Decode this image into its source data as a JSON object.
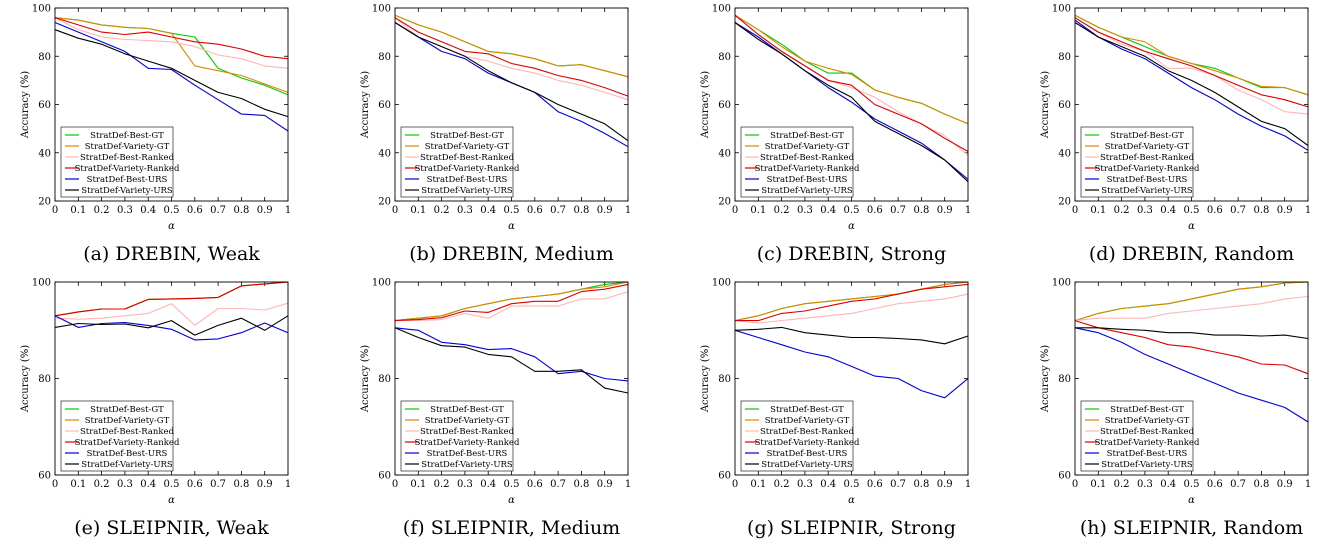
{
  "colors": {
    "StratDef-Best-GT": "#00cc00",
    "StratDef-Variety-GT": "#dd8800",
    "StratDef-Best-Ranked": "#ffb6b6",
    "StratDef-Variety-Ranked": "#dd0000",
    "StratDef-Best-URS": "#0000dd",
    "StratDef-Variety-URS": "#000000"
  },
  "chart_data": [
    {
      "type": "line",
      "caption": "(a) DREBIN, Weak",
      "xlabel": "α",
      "ylabel": "Accuracy (%)",
      "x": [
        0,
        0.1,
        0.2,
        0.3,
        0.4,
        0.5,
        0.6,
        0.7,
        0.8,
        0.9,
        1
      ],
      "xticks": [
        "0",
        "0.1",
        "0.2",
        "0.3",
        "0.4",
        "0.5",
        "0.6",
        "0.7",
        "0.8",
        "0.9",
        "1"
      ],
      "ylim": [
        20,
        100
      ],
      "yticks": [
        20,
        40,
        60,
        80,
        100
      ],
      "legend": "bottom-left",
      "series": [
        {
          "name": "StratDef-Best-GT",
          "values": [
            96,
            95,
            93,
            92,
            91.5,
            89.5,
            88,
            75,
            71,
            68,
            64
          ]
        },
        {
          "name": "StratDef-Variety-GT",
          "values": [
            96,
            95,
            93,
            92,
            91.5,
            89.5,
            76,
            74,
            72,
            68.5,
            65
          ]
        },
        {
          "name": "StratDef-Best-Ranked",
          "values": [
            96,
            91,
            88,
            87,
            86.5,
            86,
            84,
            80.5,
            79,
            76,
            75
          ]
        },
        {
          "name": "StratDef-Variety-Ranked",
          "values": [
            96,
            93,
            90,
            89,
            90,
            88,
            86,
            85,
            83,
            80,
            79
          ]
        },
        {
          "name": "StratDef-Best-URS",
          "values": [
            94,
            90,
            86,
            82,
            75,
            74.5,
            68,
            62,
            56,
            55.5,
            49
          ]
        },
        {
          "name": "StratDef-Variety-URS",
          "values": [
            91,
            87.5,
            85,
            81,
            78,
            75,
            70,
            65,
            62.5,
            58,
            55
          ]
        }
      ]
    },
    {
      "type": "line",
      "caption": "(b) DREBIN, Medium",
      "xlabel": "α",
      "ylabel": "Accuracy (%)",
      "x": [
        0,
        0.1,
        0.2,
        0.3,
        0.4,
        0.5,
        0.6,
        0.7,
        0.8,
        0.9,
        1
      ],
      "xticks": [
        "0",
        "0.1",
        "0.2",
        "0.3",
        "0.4",
        "0.5",
        "0.6",
        "0.7",
        "0.8",
        "0.9",
        "1"
      ],
      "ylim": [
        20,
        100
      ],
      "yticks": [
        20,
        40,
        60,
        80,
        100
      ],
      "legend": "bottom-left",
      "series": [
        {
          "name": "StratDef-Best-GT",
          "values": [
            97,
            93,
            90,
            86,
            82,
            81,
            79,
            76,
            76.5,
            74,
            71.5
          ]
        },
        {
          "name": "StratDef-Variety-GT",
          "values": [
            97,
            93,
            90,
            86,
            82,
            81,
            79,
            76,
            76.5,
            74,
            71.5
          ]
        },
        {
          "name": "StratDef-Best-Ranked",
          "values": [
            96,
            88,
            84,
            80,
            78,
            75,
            73,
            70,
            68,
            65,
            62
          ]
        },
        {
          "name": "StratDef-Variety-Ranked",
          "values": [
            96,
            90,
            86,
            82,
            81,
            77,
            75,
            72,
            70,
            67,
            63.5
          ]
        },
        {
          "name": "StratDef-Best-URS",
          "values": [
            94,
            88,
            82,
            79,
            73,
            69,
            65,
            57,
            53,
            48,
            42.5
          ]
        },
        {
          "name": "StratDef-Variety-URS",
          "values": [
            94,
            88,
            84,
            80,
            74,
            69,
            65,
            60,
            56,
            52,
            45
          ]
        }
      ]
    },
    {
      "type": "line",
      "caption": "(c) DREBIN, Strong",
      "xlabel": "α",
      "ylabel": "Accuracy (%)",
      "x": [
        0,
        0.1,
        0.2,
        0.3,
        0.4,
        0.5,
        0.6,
        0.7,
        0.8,
        0.9,
        1
      ],
      "xticks": [
        "0",
        "0.1",
        "0.2",
        "0.3",
        "0.4",
        "0.5",
        "0.6",
        "0.7",
        "0.8",
        "0.9",
        "1"
      ],
      "ylim": [
        20,
        100
      ],
      "yticks": [
        20,
        40,
        60,
        80,
        100
      ],
      "legend": "bottom-left",
      "series": [
        {
          "name": "StratDef-Best-GT",
          "values": [
            97,
            91,
            85,
            78,
            73,
            73,
            66,
            63,
            60.5,
            56,
            52
          ]
        },
        {
          "name": "StratDef-Variety-GT",
          "values": [
            97,
            91,
            84,
            78,
            75,
            72.5,
            66,
            63,
            60.5,
            56,
            52
          ]
        },
        {
          "name": "StratDef-Best-Ranked",
          "values": [
            97,
            89,
            82,
            76,
            70,
            67,
            63,
            57,
            52,
            47,
            39
          ]
        },
        {
          "name": "StratDef-Variety-Ranked",
          "values": [
            97,
            89,
            82,
            76,
            70,
            68,
            60,
            56,
            52,
            46,
            40.5
          ]
        },
        {
          "name": "StratDef-Best-URS",
          "values": [
            94,
            88,
            81,
            74,
            67,
            61,
            54,
            49,
            44,
            37,
            29
          ]
        },
        {
          "name": "StratDef-Variety-URS",
          "values": [
            94,
            87,
            81,
            74,
            68,
            63,
            53,
            48,
            43,
            37,
            28
          ]
        }
      ]
    },
    {
      "type": "line",
      "caption": "(d) DREBIN, Random",
      "xlabel": "α",
      "ylabel": "Accuracy (%)",
      "x": [
        0,
        0.1,
        0.2,
        0.3,
        0.4,
        0.5,
        0.6,
        0.7,
        0.8,
        0.9,
        1
      ],
      "xticks": [
        "0",
        "0.1",
        "0.2",
        "0.3",
        "0.4",
        "0.5",
        "0.6",
        "0.7",
        "0.8",
        "0.9",
        "1"
      ],
      "ylim": [
        20,
        100
      ],
      "yticks": [
        20,
        40,
        60,
        80,
        100
      ],
      "legend": "bottom-left",
      "series": [
        {
          "name": "StratDef-Best-GT",
          "values": [
            97,
            92,
            88,
            84,
            80,
            77,
            75,
            71,
            67,
            67,
            64
          ]
        },
        {
          "name": "StratDef-Variety-GT",
          "values": [
            97,
            92,
            88,
            86,
            80,
            77,
            74,
            71,
            67.5,
            67,
            64
          ]
        },
        {
          "name": "StratDef-Best-Ranked",
          "values": [
            96,
            90,
            85,
            82,
            75,
            75,
            72,
            66,
            62,
            57,
            56
          ]
        },
        {
          "name": "StratDef-Variety-Ranked",
          "values": [
            96,
            90,
            86,
            82,
            79,
            76,
            72,
            68,
            64,
            62,
            59
          ]
        },
        {
          "name": "StratDef-Best-URS",
          "values": [
            95,
            88,
            83,
            79,
            73,
            67,
            62,
            56,
            51,
            47,
            41
          ]
        },
        {
          "name": "StratDef-Variety-URS",
          "values": [
            94,
            88,
            84,
            80,
            74,
            70,
            65,
            59,
            53,
            50,
            43
          ]
        }
      ]
    },
    {
      "type": "line",
      "caption": "(e) SLEIPNIR, Weak",
      "xlabel": "α",
      "ylabel": "Accuracy (%)",
      "x": [
        0,
        0.1,
        0.2,
        0.3,
        0.4,
        0.5,
        0.6,
        0.7,
        0.8,
        0.9,
        1
      ],
      "xticks": [
        "0",
        "0.1",
        "0.2",
        "0.3",
        "0.4",
        "0.5",
        "0.6",
        "0.7",
        "0.8",
        "0.9",
        "1"
      ],
      "ylim": [
        60,
        100
      ],
      "yticks": [
        60,
        80,
        100
      ],
      "legend": "bottom-left",
      "series": [
        {
          "name": "StratDef-Best-GT",
          "values": [
            93,
            93.8,
            94.4,
            94.4,
            96.4,
            96.5,
            96.6,
            96.8,
            99.2,
            99.6,
            100
          ]
        },
        {
          "name": "StratDef-Variety-GT",
          "values": [
            93,
            93.8,
            94.4,
            94.4,
            96.4,
            96.5,
            96.6,
            96.8,
            99.2,
            99.6,
            100
          ]
        },
        {
          "name": "StratDef-Best-Ranked",
          "values": [
            92.5,
            92.3,
            92.5,
            93,
            93.5,
            95.5,
            91,
            94.5,
            94.5,
            94.2,
            95.6
          ]
        },
        {
          "name": "StratDef-Variety-Ranked",
          "values": [
            93,
            93.8,
            94.4,
            94.4,
            96.4,
            96.5,
            96.6,
            96.8,
            99.2,
            99.6,
            100
          ]
        },
        {
          "name": "StratDef-Best-URS",
          "values": [
            93,
            90.6,
            91.4,
            91.6,
            91,
            90.2,
            88,
            88.2,
            89.5,
            91.5,
            89.5
          ]
        },
        {
          "name": "StratDef-Variety-URS",
          "values": [
            90.6,
            91.4,
            91.2,
            91.3,
            90.5,
            92,
            89,
            91,
            92.5,
            90,
            93
          ]
        }
      ]
    },
    {
      "type": "line",
      "caption": "(f) SLEIPNIR, Medium",
      "xlabel": "α",
      "ylabel": "Accuracy (%)",
      "x": [
        0,
        0.1,
        0.2,
        0.3,
        0.4,
        0.5,
        0.6,
        0.7,
        0.8,
        0.9,
        1
      ],
      "xticks": [
        "0",
        "0.1",
        "0.2",
        "0.3",
        "0.4",
        "0.5",
        "0.6",
        "0.7",
        "0.8",
        "0.9",
        "1"
      ],
      "ylim": [
        60,
        100
      ],
      "yticks": [
        60,
        80,
        100
      ],
      "legend": "bottom-left",
      "series": [
        {
          "name": "StratDef-Best-GT",
          "values": [
            92,
            92.5,
            93,
            94.5,
            95.5,
            96.5,
            97,
            97.5,
            98.5,
            99.5,
            100
          ]
        },
        {
          "name": "StratDef-Variety-GT",
          "values": [
            92,
            92.5,
            93,
            94.5,
            95.5,
            96.5,
            97,
            97.5,
            98.5,
            99,
            100
          ]
        },
        {
          "name": "StratDef-Best-Ranked",
          "values": [
            92,
            92,
            92.2,
            93.5,
            92.5,
            95,
            95,
            95,
            96.5,
            96.5,
            98
          ]
        },
        {
          "name": "StratDef-Variety-Ranked",
          "values": [
            92,
            92.2,
            92.6,
            94,
            93.7,
            95.5,
            96,
            96,
            98,
            98.5,
            99.5
          ]
        },
        {
          "name": "StratDef-Best-URS",
          "values": [
            90.5,
            90,
            87.5,
            87,
            86,
            86.2,
            84.5,
            81,
            81.5,
            80,
            79.5
          ]
        },
        {
          "name": "StratDef-Variety-URS",
          "values": [
            90.5,
            88.5,
            86.8,
            86.5,
            85,
            84.5,
            81.5,
            81.5,
            81.8,
            78,
            77
          ]
        }
      ]
    },
    {
      "type": "line",
      "caption": "(g) SLEIPNIR, Strong",
      "xlabel": "α",
      "ylabel": "Accuracy (%)",
      "x": [
        0,
        0.1,
        0.2,
        0.3,
        0.4,
        0.5,
        0.6,
        0.7,
        0.8,
        0.9,
        1
      ],
      "xticks": [
        "0",
        "0.1",
        "0.2",
        "0.3",
        "0.4",
        "0.5",
        "0.6",
        "0.7",
        "0.8",
        "0.9",
        "1"
      ],
      "ylim": [
        60,
        100
      ],
      "yticks": [
        60,
        80,
        100
      ],
      "legend": "bottom-left",
      "series": [
        {
          "name": "StratDef-Best-GT",
          "values": [
            92,
            93,
            94.5,
            95.5,
            96,
            96.5,
            97,
            97.5,
            98.5,
            99.5,
            100
          ]
        },
        {
          "name": "StratDef-Variety-GT",
          "values": [
            92,
            93,
            94.5,
            95.5,
            96,
            96.5,
            97,
            97.5,
            98.5,
            99.5,
            100
          ]
        },
        {
          "name": "StratDef-Best-Ranked",
          "values": [
            92,
            91.5,
            92,
            92.5,
            93,
            93.5,
            94.5,
            95.5,
            96,
            96.5,
            97.5
          ]
        },
        {
          "name": "StratDef-Variety-Ranked",
          "values": [
            92,
            92,
            93.5,
            94,
            95,
            96,
            96.5,
            97.5,
            98.5,
            99,
            99.5
          ]
        },
        {
          "name": "StratDef-Best-URS",
          "values": [
            90,
            88.5,
            87,
            85.5,
            84.5,
            82.5,
            80.5,
            80,
            77.5,
            76,
            80
          ]
        },
        {
          "name": "StratDef-Variety-URS",
          "values": [
            90,
            90.2,
            90.6,
            89.5,
            89,
            88.5,
            88.5,
            88.3,
            88,
            87.2,
            88.8
          ]
        }
      ]
    },
    {
      "type": "line",
      "caption": "(h) SLEIPNIR, Random",
      "xlabel": "α",
      "ylabel": "Accuracy (%)",
      "x": [
        0,
        0.1,
        0.2,
        0.3,
        0.4,
        0.5,
        0.6,
        0.7,
        0.8,
        0.9,
        1
      ],
      "xticks": [
        "0",
        "0.1",
        "0.2",
        "0.3",
        "0.4",
        "0.5",
        "0.6",
        "0.7",
        "0.8",
        "0.9",
        "1"
      ],
      "ylim": [
        60,
        100
      ],
      "yticks": [
        60,
        80,
        100
      ],
      "legend": "bottom-left",
      "series": [
        {
          "name": "StratDef-Best-GT",
          "values": [
            92,
            93.5,
            94.5,
            95,
            95.5,
            96.5,
            97.5,
            98.5,
            99,
            99.8,
            100
          ]
        },
        {
          "name": "StratDef-Variety-GT",
          "values": [
            92,
            93.5,
            94.5,
            95,
            95.5,
            96.5,
            97.5,
            98.5,
            99,
            99.8,
            100
          ]
        },
        {
          "name": "StratDef-Best-Ranked",
          "values": [
            92,
            92.5,
            92.5,
            92.5,
            93.5,
            94,
            94.5,
            95,
            95.5,
            96.5,
            97
          ]
        },
        {
          "name": "StratDef-Variety-Ranked",
          "values": [
            92,
            90.5,
            89.5,
            88.5,
            87,
            86.5,
            85.5,
            84.5,
            83,
            82.8,
            81
          ]
        },
        {
          "name": "StratDef-Best-URS",
          "values": [
            90.5,
            89.5,
            87.5,
            85,
            83,
            81,
            79,
            77,
            75.5,
            74,
            71
          ]
        },
        {
          "name": "StratDef-Variety-URS",
          "values": [
            90.5,
            90.5,
            90.2,
            90,
            89.5,
            89.5,
            89,
            89,
            88.8,
            89,
            88.3
          ]
        }
      ]
    }
  ]
}
